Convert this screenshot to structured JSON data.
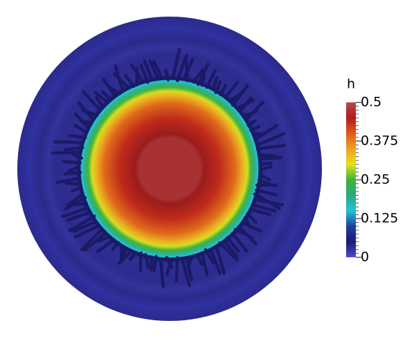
{
  "chart_data": {
    "type": "colorfield",
    "colorbar_title": "h",
    "clim": [
      0,
      0.5
    ],
    "cticks": [
      0,
      0.125,
      0.25,
      0.375,
      0.5
    ],
    "colormap": [
      "#4b4bd0",
      "#1c1c70",
      "#1f3fa0",
      "#22c4d4",
      "#2aa880",
      "#3cb43c",
      "#e6e020",
      "#f0a020",
      "#e05a18",
      "#b01c1c",
      "#b84a4a"
    ]
  }
}
